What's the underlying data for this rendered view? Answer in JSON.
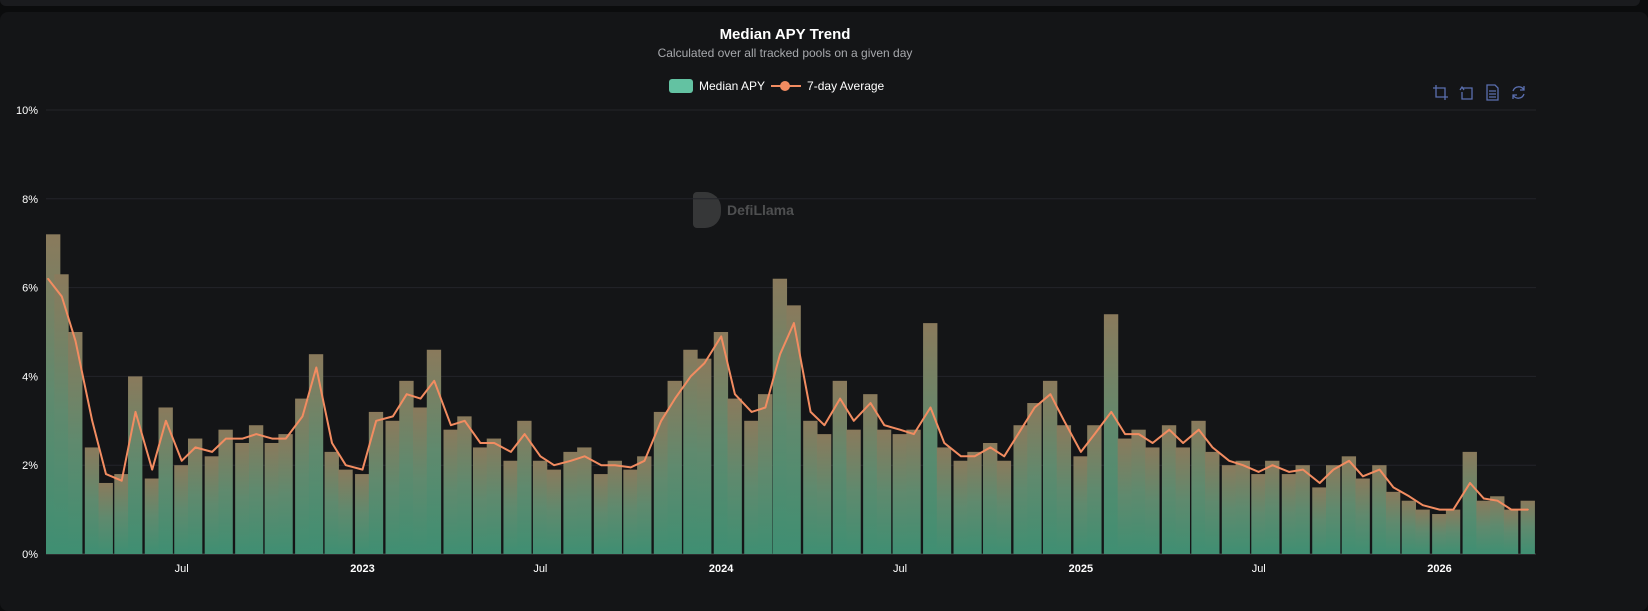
{
  "title": "Median APY Trend",
  "subtitle": "Calculated over all tracked pools on a given day",
  "legend": {
    "bar": "Median APY",
    "line": "7-day Average"
  },
  "watermark": "DefiLlama",
  "toolbox": [
    "crop-icon",
    "undo-icon",
    "data-view-icon",
    "refresh-icon"
  ],
  "colors": {
    "bar": "#63c2a2",
    "line": "#f28c61",
    "background": "#141517"
  },
  "chart_data": {
    "type": "bar",
    "title": "Median APY Trend",
    "subtitle": "Calculated over all tracked pools on a given day",
    "yaxis": {
      "min": 0,
      "max": 10,
      "ticks": [
        "0%",
        "2%",
        "4%",
        "6%",
        "8%",
        "10%"
      ],
      "unit": "%"
    },
    "xaxis": {
      "ticks": [
        {
          "date": "2022-07-01",
          "label": "Jul"
        },
        {
          "date": "2023-01-01",
          "label": "2023"
        },
        {
          "date": "2023-07-01",
          "label": "Jul"
        },
        {
          "date": "2024-01-01",
          "label": "2024"
        },
        {
          "date": "2024-07-01",
          "label": "Jul"
        },
        {
          "date": "2025-01-01",
          "label": "2025"
        },
        {
          "date": "2025-07-01",
          "label": "Jul"
        },
        {
          "date": "2026-01-01",
          "label": "2026"
        }
      ]
    },
    "grid": true,
    "legend_position": "top",
    "x": [
      "2022-02-15",
      "2022-03-01",
      "2022-03-15",
      "2022-04-01",
      "2022-04-15",
      "2022-05-01",
      "2022-05-15",
      "2022-06-01",
      "2022-06-15",
      "2022-07-01",
      "2022-07-15",
      "2022-08-01",
      "2022-08-15",
      "2022-09-01",
      "2022-09-15",
      "2022-10-01",
      "2022-10-15",
      "2022-11-01",
      "2022-11-15",
      "2022-12-01",
      "2022-12-15",
      "2023-01-01",
      "2023-01-15",
      "2023-02-01",
      "2023-02-15",
      "2023-03-01",
      "2023-03-15",
      "2023-04-01",
      "2023-04-15",
      "2023-05-01",
      "2023-05-15",
      "2023-06-01",
      "2023-06-15",
      "2023-07-01",
      "2023-07-15",
      "2023-08-01",
      "2023-08-15",
      "2023-09-01",
      "2023-09-15",
      "2023-10-01",
      "2023-10-15",
      "2023-11-01",
      "2023-11-15",
      "2023-12-01",
      "2023-12-15",
      "2024-01-01",
      "2024-01-15",
      "2024-02-01",
      "2024-02-15",
      "2024-03-01",
      "2024-03-15",
      "2024-04-01",
      "2024-04-15",
      "2024-05-01",
      "2024-05-15",
      "2024-06-01",
      "2024-06-15",
      "2024-07-01",
      "2024-07-15",
      "2024-08-01",
      "2024-08-15",
      "2024-09-01",
      "2024-09-15",
      "2024-10-01",
      "2024-10-15",
      "2024-11-01",
      "2024-11-15",
      "2024-12-01",
      "2024-12-15",
      "2025-01-01",
      "2025-01-15",
      "2025-02-01",
      "2025-02-15",
      "2025-03-01",
      "2025-03-15",
      "2025-04-01",
      "2025-04-15",
      "2025-05-01",
      "2025-05-15",
      "2025-06-01",
      "2025-06-15",
      "2025-07-01",
      "2025-07-15",
      "2025-08-01",
      "2025-08-15",
      "2025-09-01",
      "2025-09-15",
      "2025-10-01",
      "2025-10-15",
      "2025-11-01",
      "2025-11-15",
      "2025-12-01",
      "2025-12-15",
      "2026-01-01",
      "2026-01-15",
      "2026-02-01",
      "2026-02-15",
      "2026-03-01",
      "2026-03-15",
      "2026-04-01"
    ],
    "series": [
      {
        "name": "Median APY",
        "type": "bar",
        "values": [
          7.2,
          6.3,
          5.0,
          2.4,
          1.6,
          1.8,
          4.0,
          1.7,
          3.3,
          2.0,
          2.6,
          2.2,
          2.8,
          2.5,
          2.9,
          2.5,
          2.7,
          3.5,
          4.5,
          2.3,
          1.9,
          1.8,
          3.2,
          3.0,
          3.9,
          3.3,
          4.6,
          2.8,
          3.1,
          2.4,
          2.6,
          2.1,
          3.0,
          2.1,
          1.9,
          2.3,
          2.4,
          1.8,
          2.1,
          1.9,
          2.2,
          3.2,
          3.9,
          4.6,
          4.4,
          5.0,
          3.5,
          3.0,
          3.6,
          6.2,
          5.6,
          3.0,
          2.7,
          3.9,
          2.8,
          3.6,
          2.8,
          2.7,
          2.8,
          5.2,
          2.4,
          2.1,
          2.3,
          2.5,
          2.1,
          2.9,
          3.4,
          3.9,
          2.9,
          2.2,
          2.9,
          5.4,
          2.6,
          2.8,
          2.4,
          2.9,
          2.4,
          3.0,
          2.3,
          2.0,
          2.1,
          1.8,
          2.1,
          1.8,
          2.0,
          1.5,
          2.0,
          2.2,
          1.7,
          2.0,
          1.4,
          1.2,
          1.0,
          0.9,
          1.0,
          2.3,
          1.2,
          1.3,
          1.0,
          1.2
        ]
      },
      {
        "name": "7-day Average",
        "type": "line",
        "values": [
          6.2,
          5.8,
          4.8,
          3.0,
          1.8,
          1.65,
          3.2,
          1.9,
          3.0,
          2.1,
          2.4,
          2.3,
          2.6,
          2.6,
          2.7,
          2.6,
          2.6,
          3.1,
          4.2,
          2.5,
          2.0,
          1.9,
          3.0,
          3.1,
          3.6,
          3.5,
          3.9,
          2.9,
          3.0,
          2.5,
          2.5,
          2.3,
          2.7,
          2.2,
          2.0,
          2.1,
          2.2,
          2.0,
          2.0,
          1.95,
          2.1,
          3.0,
          3.5,
          4.0,
          4.3,
          4.9,
          3.6,
          3.2,
          3.3,
          4.5,
          5.2,
          3.2,
          2.9,
          3.5,
          3.0,
          3.4,
          2.9,
          2.8,
          2.7,
          3.3,
          2.5,
          2.2,
          2.2,
          2.4,
          2.2,
          2.8,
          3.3,
          3.6,
          3.0,
          2.3,
          2.7,
          3.2,
          2.7,
          2.7,
          2.5,
          2.8,
          2.5,
          2.8,
          2.4,
          2.1,
          2.0,
          1.85,
          2.0,
          1.85,
          1.9,
          1.6,
          1.9,
          2.1,
          1.75,
          1.9,
          1.5,
          1.3,
          1.1,
          1.0,
          1.0,
          1.6,
          1.25,
          1.2,
          1.0,
          1.0
        ]
      }
    ]
  }
}
